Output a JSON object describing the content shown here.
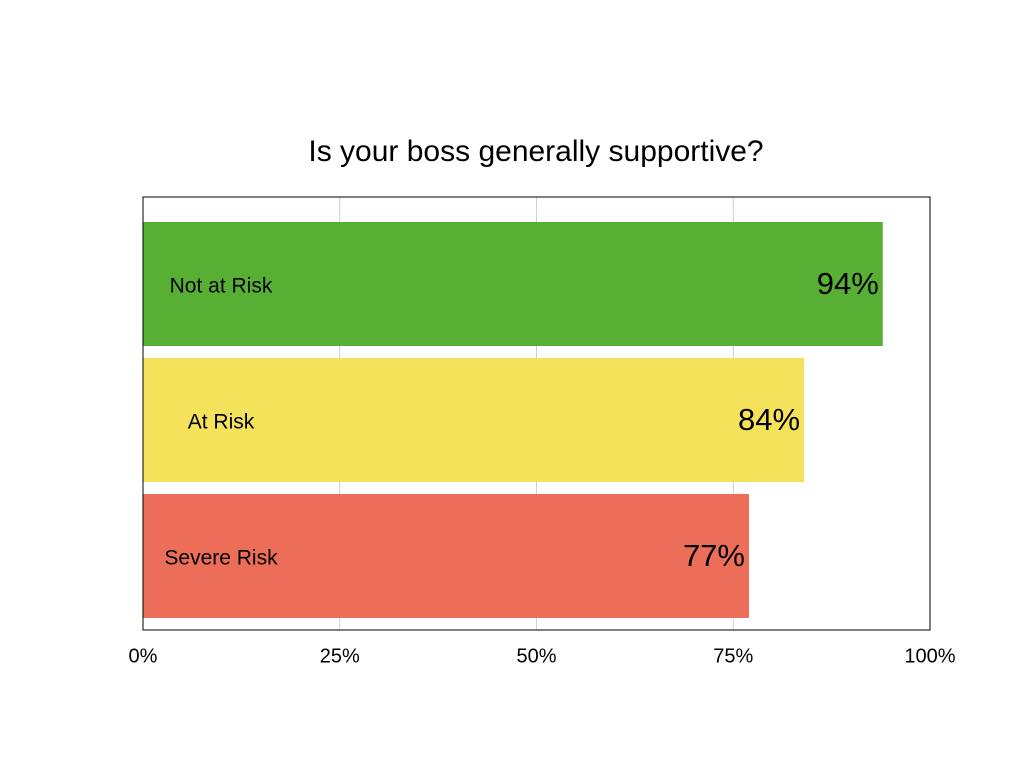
{
  "chart_data": {
    "type": "barh",
    "title": "Is your boss generally supportive?",
    "categories": [
      "Not at Risk",
      "At Risk",
      "Severe Risk"
    ],
    "values": [
      94,
      84,
      77
    ],
    "value_labels": [
      "94%",
      "84%",
      "77%"
    ],
    "colors": [
      "#57b033",
      "#f5e25b",
      "#ec6e58"
    ],
    "xlim": [
      0,
      100
    ],
    "xticks": [
      {
        "value": 0,
        "label": "0%"
      },
      {
        "value": 25,
        "label": "25%"
      },
      {
        "value": 50,
        "label": "50%"
      },
      {
        "value": 75,
        "label": "75%"
      },
      {
        "value": 100,
        "label": "100%"
      }
    ],
    "grid": true
  }
}
